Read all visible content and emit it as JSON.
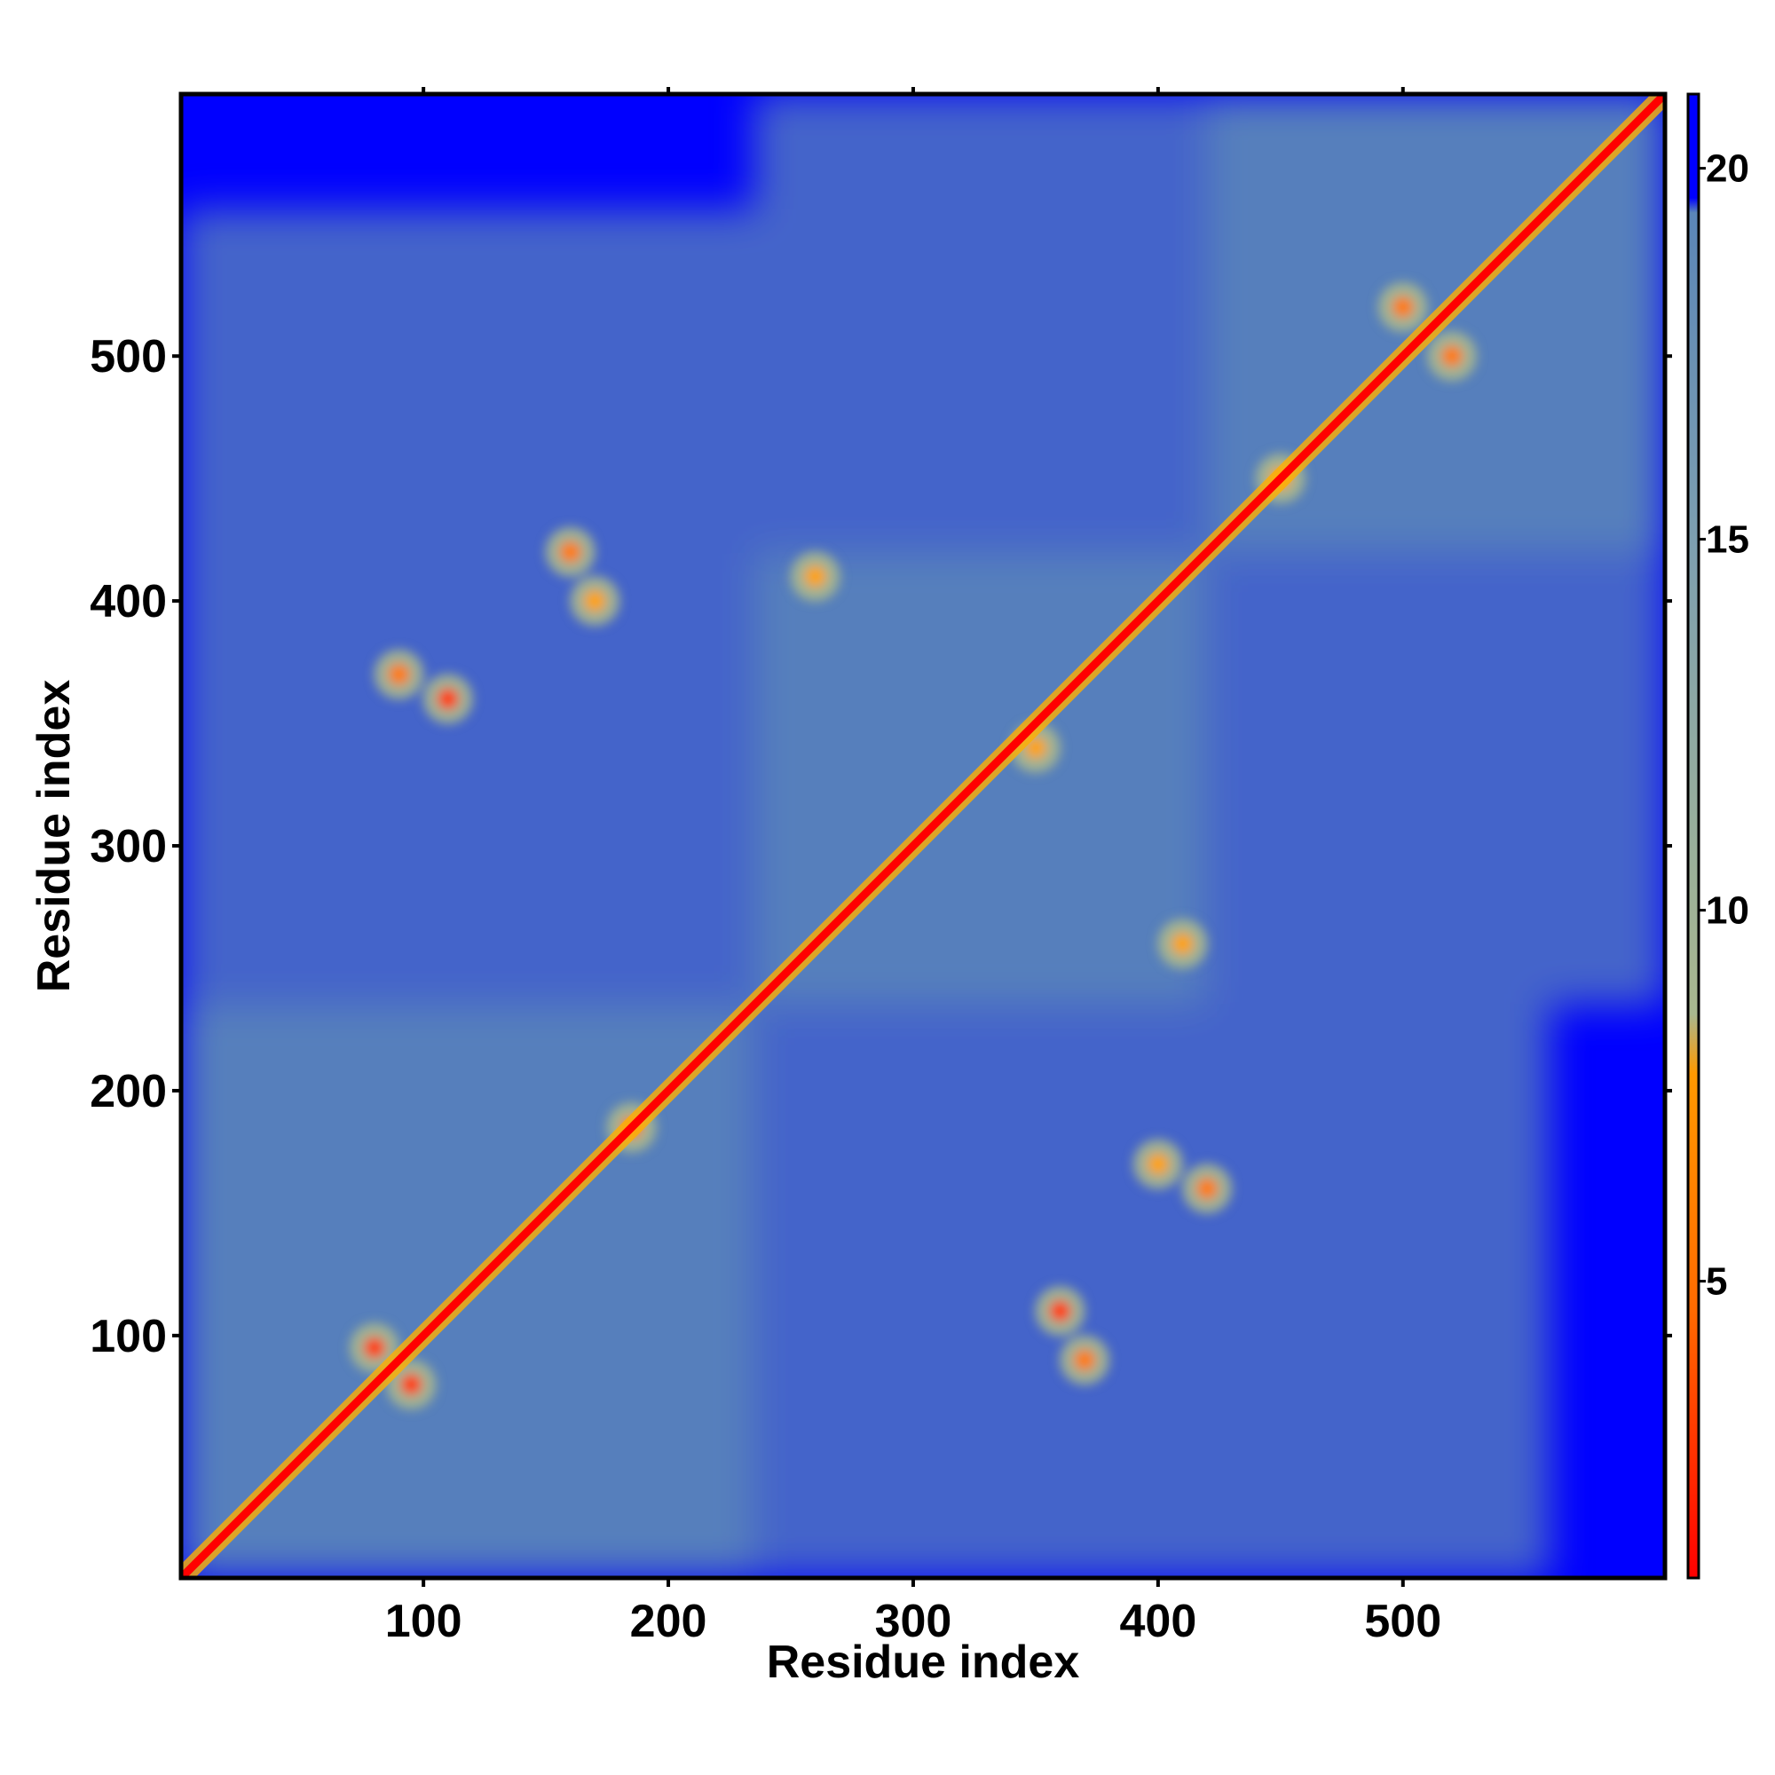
{
  "chart_data": {
    "type": "heatmap",
    "title": "",
    "xlabel": "Residue index",
    "ylabel": "Residue index",
    "xlim": [
      1,
      607
    ],
    "ylim": [
      1,
      607
    ],
    "x_ticks": [
      "100",
      "200",
      "300",
      "400",
      "500"
    ],
    "x_tick_values": [
      100,
      200,
      300,
      400,
      500
    ],
    "y_ticks": [
      "100",
      "200",
      "300",
      "400",
      "500"
    ],
    "y_tick_values": [
      100,
      200,
      300,
      400,
      500
    ],
    "colorbar": {
      "range": [
        1,
        21
      ],
      "ticks": [
        "5",
        "10",
        "15",
        "20"
      ],
      "tick_values": [
        5,
        10,
        15,
        20
      ],
      "colors": {
        "close": "#ff0000",
        "near": "#ff9900",
        "mid": "#a9b88f",
        "far": "#5b86b8",
        "background": "#0000ff"
      }
    },
    "description_values": {
      "diagonal": "symmetric contact/distance map, values near 1 along the main diagonal",
      "domains": [
        {
          "from": 1,
          "to": 235
        },
        {
          "from": 235,
          "to": 420
        },
        {
          "from": 420,
          "to": 607
        }
      ],
      "contact_clusters": [
        {
          "x": 80,
          "y": 95,
          "value": 5
        },
        {
          "x": 95,
          "y": 80,
          "value": 5
        },
        {
          "x": 110,
          "y": 360,
          "value": 5
        },
        {
          "x": 360,
          "y": 110,
          "value": 5
        },
        {
          "x": 160,
          "y": 420,
          "value": 6
        },
        {
          "x": 420,
          "y": 160,
          "value": 6
        },
        {
          "x": 370,
          "y": 90,
          "value": 6
        },
        {
          "x": 90,
          "y": 370,
          "value": 6
        },
        {
          "x": 185,
          "y": 185,
          "value": 6
        },
        {
          "x": 350,
          "y": 340,
          "value": 7
        },
        {
          "x": 500,
          "y": 520,
          "value": 6
        },
        {
          "x": 520,
          "y": 500,
          "value": 6
        },
        {
          "x": 450,
          "y": 450,
          "value": 7
        },
        {
          "x": 260,
          "y": 410,
          "value": 7
        },
        {
          "x": 410,
          "y": 260,
          "value": 7
        },
        {
          "x": 400,
          "y": 170,
          "value": 7
        },
        {
          "x": 170,
          "y": 400,
          "value": 7
        }
      ]
    }
  }
}
